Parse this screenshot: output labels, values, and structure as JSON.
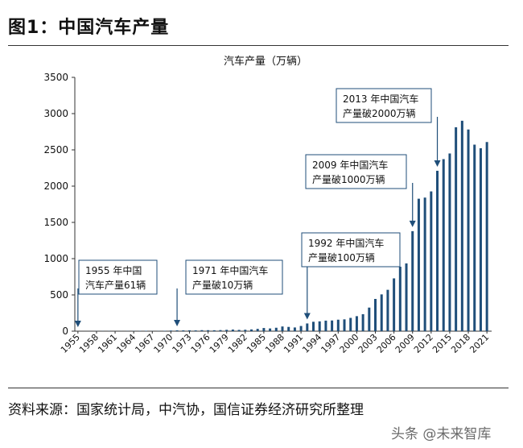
{
  "figure": {
    "title": "图1：中国汽车产量",
    "source": "资料来源：国家统计局，中汽协，国信证券经济研究所整理",
    "watermark": "头条 @未来智库"
  },
  "colors": {
    "bar": "#1f4e79",
    "annotation_border": "#1f4e79",
    "axis": "#333333"
  },
  "chart_data": {
    "type": "bar",
    "title": "汽车产量（万辆）",
    "xlabel": "",
    "ylabel": "",
    "ylim": [
      0,
      3500
    ],
    "yticks": [
      0,
      500,
      1000,
      1500,
      2000,
      2500,
      3000,
      3500
    ],
    "xtick_labels": [
      "1955",
      "1958",
      "1961",
      "1964",
      "1967",
      "1970",
      "1973",
      "1976",
      "1979",
      "1982",
      "1985",
      "1988",
      "1991",
      "1994",
      "1997",
      "2000",
      "2003",
      "2006",
      "2009",
      "2012",
      "2015",
      "2018",
      "2021"
    ],
    "categories": [
      "1955",
      "1956",
      "1957",
      "1958",
      "1959",
      "1960",
      "1961",
      "1962",
      "1963",
      "1964",
      "1965",
      "1966",
      "1967",
      "1968",
      "1969",
      "1970",
      "1971",
      "1972",
      "1973",
      "1974",
      "1975",
      "1976",
      "1977",
      "1978",
      "1979",
      "1980",
      "1981",
      "1982",
      "1983",
      "1984",
      "1985",
      "1986",
      "1987",
      "1988",
      "1989",
      "1990",
      "1991",
      "1992",
      "1993",
      "1994",
      "1995",
      "1996",
      "1997",
      "1998",
      "1999",
      "2000",
      "2001",
      "2002",
      "2003",
      "2004",
      "2005",
      "2006",
      "2007",
      "2008",
      "2009",
      "2010",
      "2011",
      "2012",
      "2013",
      "2014",
      "2015",
      "2016",
      "2017",
      "2018",
      "2019",
      "2020",
      "2021"
    ],
    "values": [
      0,
      0,
      0.8,
      1.6,
      2,
      2.3,
      0.4,
      1,
      2,
      2.8,
      4,
      5.6,
      2,
      2.5,
      5.3,
      8.7,
      11,
      10.8,
      11.6,
      10.5,
      14,
      13.5,
      12.5,
      14.9,
      18.6,
      22.2,
      17.6,
      19.6,
      24,
      31.6,
      43.7,
      37.3,
      47.2,
      64.7,
      58.7,
      50.9,
      71.4,
      106.2,
      129.7,
      135.3,
      145.3,
      147.5,
      158.3,
      163,
      183.2,
      206.9,
      234.2,
      325.1,
      444.4,
      507.1,
      570.5,
      728,
      888.9,
      934.5,
      1379.1,
      1826.5,
      1841.9,
      1927.2,
      2211.7,
      2372.3,
      2450.3,
      2811.9,
      2901.5,
      2780.9,
      2572.1,
      2522.5,
      2608.2
    ],
    "annotations": [
      {
        "text_lines": [
          "1955 年中国",
          "汽车产量61辆"
        ],
        "year": "1955"
      },
      {
        "text_lines": [
          "1971 年中国汽车",
          "产量破10万辆"
        ],
        "year": "1971"
      },
      {
        "text_lines": [
          "1992 年中国汽车",
          "产量破100万辆"
        ],
        "year": "1992"
      },
      {
        "text_lines": [
          "2009 年中国汽车",
          "产量破1000万辆"
        ],
        "year": "2009"
      },
      {
        "text_lines": [
          "2013 年中国汽车",
          "产量破2000万辆"
        ],
        "year": "2013"
      }
    ],
    "grid": false,
    "legend": "none"
  }
}
